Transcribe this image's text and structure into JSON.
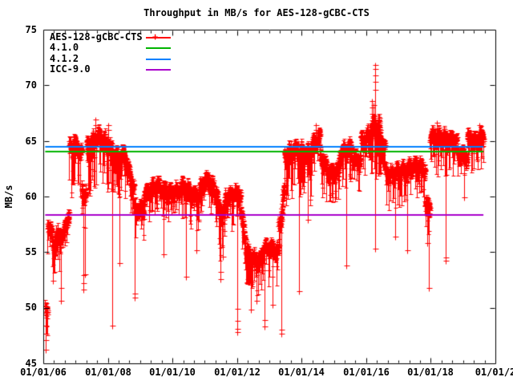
{
  "chart_data": {
    "type": "scatter",
    "title": "Throughput in MB/s for AES-128-gCBC-CTS",
    "grid": false,
    "legend_position": "top-left-inside",
    "x_axis": {
      "tick_labels": [
        "01/01/06",
        "01/01/08",
        "01/01/10",
        "01/01/12",
        "01/01/14",
        "01/01/16",
        "01/01/18",
        "01/01/2"
      ],
      "range_years": [
        2006,
        2020
      ],
      "minor_ticks_per_major_interval": 5
    },
    "y_axis": {
      "label": "MB/s",
      "min": 45,
      "max": 75,
      "tick_labels_top_to_bottom": [
        "75",
        "70",
        "65",
        "60",
        "55",
        "50",
        "45"
      ]
    },
    "series_name": "AES-128-gCBC-CTS",
    "series_color": "#ff0000",
    "legend": [
      {
        "label": "AES-128-gCBC-CTS",
        "color": "#ff0000",
        "marker_glyph": "+"
      },
      {
        "label": "4.1.0",
        "color": "#00b400",
        "marker_glyph": ""
      },
      {
        "label": "4.1.2",
        "color": "#0080ff",
        "marker_glyph": ""
      },
      {
        "label": "ICC-9.0",
        "color": "#aa00cc",
        "marker_glyph": ""
      }
    ],
    "ref_lines": [
      {
        "label": "4.1.0",
        "value": 64.05,
        "color": "#00b400"
      },
      {
        "label": "4.1.2",
        "value": 64.45,
        "color": "#0080ff"
      },
      {
        "label": "ICC-9.0",
        "value": 58.35,
        "color": "#aa00cc"
      }
    ],
    "data_extent_years": [
      0.06,
      13.63
    ],
    "sample_interval_years": 0.0047,
    "scatter_segments": [
      {
        "t0": 0.06,
        "t1": 0.13,
        "v0": 49.9,
        "v1": 49.7,
        "band": 0.6,
        "tail_prob": 0.3,
        "tail_max": 2.4
      },
      {
        "t0": 0.13,
        "t1": 0.32,
        "v0": 57.7,
        "v1": 55.9,
        "band": 1.0,
        "tail_prob": 0.12,
        "tail_max": 2.2
      },
      {
        "t0": 0.32,
        "t1": 0.5,
        "v0": 55.9,
        "v1": 57.2,
        "band": 1.0,
        "tail_prob": 0.12,
        "tail_max": 2.2
      },
      {
        "t0": 0.5,
        "t1": 0.64,
        "v0": 56.3,
        "v1": 56.6,
        "band": 0.9,
        "tail_prob": 0.12,
        "tail_max": 2.2
      },
      {
        "t0": 0.64,
        "t1": 0.8,
        "v0": 57.4,
        "v1": 58.0,
        "band": 0.7,
        "tail_prob": 0.1,
        "tail_max": 1.8
      },
      {
        "t0": 0.8,
        "t1": 1.02,
        "v0": 64.2,
        "v1": 64.5,
        "band": 1.1,
        "tail_prob": 0.22,
        "tail_max": 3.8
      },
      {
        "t0": 1.02,
        "t1": 1.18,
        "v0": 64.6,
        "v1": 64.0,
        "band": 0.9,
        "tail_prob": 0.18,
        "tail_max": 3.2
      },
      {
        "t0": 1.18,
        "t1": 1.33,
        "v0": 60.8,
        "v1": 60.4,
        "band": 1.0,
        "tail_prob": 0.15,
        "tail_max": 2.6
      },
      {
        "t0": 1.33,
        "t1": 1.6,
        "v0": 64.6,
        "v1": 65.1,
        "band": 1.0,
        "tail_prob": 0.2,
        "tail_max": 3.6
      },
      {
        "t0": 1.6,
        "t1": 2.1,
        "v0": 65.2,
        "v1": 64.6,
        "band": 0.95,
        "tail_prob": 0.2,
        "tail_max": 3.6
      },
      {
        "t0": 2.1,
        "t1": 2.52,
        "v0": 63.9,
        "v1": 63.5,
        "band": 0.85,
        "tail_prob": 0.15,
        "tail_max": 3.0
      },
      {
        "t0": 2.52,
        "t1": 2.8,
        "v0": 63.0,
        "v1": 60.6,
        "band": 1.1,
        "tail_prob": 0.15,
        "tail_max": 2.8
      },
      {
        "t0": 2.8,
        "t1": 3.1,
        "v0": 58.9,
        "v1": 59.3,
        "band": 0.9,
        "tail_prob": 0.1,
        "tail_max": 2.2
      },
      {
        "t0": 3.1,
        "t1": 3.65,
        "v0": 60.3,
        "v1": 60.8,
        "band": 0.9,
        "tail_prob": 0.12,
        "tail_max": 2.4
      },
      {
        "t0": 3.65,
        "t1": 4.25,
        "v0": 60.8,
        "v1": 60.4,
        "band": 0.9,
        "tail_prob": 0.12,
        "tail_max": 2.6
      },
      {
        "t0": 4.25,
        "t1": 4.85,
        "v0": 60.5,
        "v1": 60.4,
        "band": 1.0,
        "tail_prob": 0.12,
        "tail_max": 2.6
      },
      {
        "t0": 4.85,
        "t1": 5.12,
        "v0": 60.9,
        "v1": 61.4,
        "band": 0.9,
        "tail_prob": 0.1,
        "tail_max": 2.2
      },
      {
        "t0": 5.12,
        "t1": 5.38,
        "v0": 61.0,
        "v1": 60.2,
        "band": 0.9,
        "tail_prob": 0.1,
        "tail_max": 2.2
      },
      {
        "t0": 5.38,
        "t1": 5.62,
        "v0": 59.1,
        "v1": 58.8,
        "band": 1.1,
        "tail_prob": 0.2,
        "tail_max": 3.4
      },
      {
        "t0": 5.62,
        "t1": 6.1,
        "v0": 60.2,
        "v1": 59.9,
        "band": 0.9,
        "tail_prob": 0.1,
        "tail_max": 2.2
      },
      {
        "t0": 6.1,
        "t1": 6.26,
        "v0": 58.2,
        "v1": 56.3,
        "band": 1.1,
        "tail_prob": 0.1,
        "tail_max": 2.2
      },
      {
        "t0": 6.26,
        "t1": 6.58,
        "v0": 55.2,
        "v1": 54.5,
        "band": 0.9,
        "tail_prob": 0.15,
        "tail_max": 2.8
      },
      {
        "t0": 6.58,
        "t1": 6.78,
        "v0": 54.1,
        "v1": 54.4,
        "band": 0.7,
        "tail_prob": 0.12,
        "tail_max": 2.4
      },
      {
        "t0": 6.78,
        "t1": 7.28,
        "v0": 55.1,
        "v1": 55.4,
        "band": 0.8,
        "tail_prob": 0.12,
        "tail_max": 2.8
      },
      {
        "t0": 7.28,
        "t1": 7.46,
        "v0": 58.0,
        "v1": 60.5,
        "band": 1.5,
        "tail_prob": 0.15,
        "tail_max": 2.6
      },
      {
        "t0": 7.46,
        "t1": 7.85,
        "v0": 63.7,
        "v1": 64.1,
        "band": 1.0,
        "tail_prob": 0.2,
        "tail_max": 3.6
      },
      {
        "t0": 7.85,
        "t1": 8.32,
        "v0": 64.0,
        "v1": 64.3,
        "band": 1.0,
        "tail_prob": 0.2,
        "tail_max": 3.6
      },
      {
        "t0": 8.32,
        "t1": 8.56,
        "v0": 64.8,
        "v1": 65.2,
        "band": 0.9,
        "tail_prob": 0.15,
        "tail_max": 2.8
      },
      {
        "t0": 8.56,
        "t1": 8.78,
        "v0": 63.4,
        "v1": 62.3,
        "band": 1.0,
        "tail_prob": 0.12,
        "tail_max": 2.4
      },
      {
        "t0": 8.78,
        "t1": 9.16,
        "v0": 62.3,
        "v1": 62.6,
        "band": 0.9,
        "tail_prob": 0.12,
        "tail_max": 2.6
      },
      {
        "t0": 9.16,
        "t1": 9.56,
        "v0": 63.9,
        "v1": 64.2,
        "band": 0.8,
        "tail_prob": 0.15,
        "tail_max": 3.0
      },
      {
        "t0": 9.56,
        "t1": 9.82,
        "v0": 63.2,
        "v1": 63.5,
        "band": 0.9,
        "tail_prob": 0.12,
        "tail_max": 2.4
      },
      {
        "t0": 9.82,
        "t1": 10.16,
        "v0": 65.2,
        "v1": 65.8,
        "band": 1.0,
        "tail_prob": 0.18,
        "tail_max": 3.4
      },
      {
        "t0": 10.16,
        "t1": 10.42,
        "v0": 66.1,
        "v1": 65.7,
        "band": 1.2,
        "tail_prob": 0.18,
        "tail_max": 3.6
      },
      {
        "t0": 10.42,
        "t1": 10.58,
        "v0": 64.9,
        "v1": 64.5,
        "band": 0.9,
        "tail_prob": 0.12,
        "tail_max": 2.6
      },
      {
        "t0": 10.58,
        "t1": 10.84,
        "v0": 62.5,
        "v1": 62.2,
        "band": 0.9,
        "tail_prob": 0.12,
        "tail_max": 2.4
      },
      {
        "t0": 10.84,
        "t1": 11.28,
        "v0": 62.3,
        "v1": 62.0,
        "band": 0.9,
        "tail_prob": 0.15,
        "tail_max": 2.8
      },
      {
        "t0": 11.28,
        "t1": 11.58,
        "v0": 62.5,
        "v1": 63.2,
        "band": 0.8,
        "tail_prob": 0.12,
        "tail_max": 2.4
      },
      {
        "t0": 11.58,
        "t1": 11.82,
        "v0": 63.1,
        "v1": 62.6,
        "band": 0.9,
        "tail_prob": 0.12,
        "tail_max": 2.4
      },
      {
        "t0": 11.82,
        "t1": 11.97,
        "v0": 59.3,
        "v1": 59.0,
        "band": 0.7,
        "tail_prob": 0.15,
        "tail_max": 2.4
      },
      {
        "t0": 11.97,
        "t1": 12.52,
        "v0": 65.2,
        "v1": 65.5,
        "band": 0.9,
        "tail_prob": 0.15,
        "tail_max": 3.0
      },
      {
        "t0": 12.52,
        "t1": 12.8,
        "v0": 65.5,
        "v1": 64.8,
        "band": 0.8,
        "tail_prob": 0.12,
        "tail_max": 2.4
      },
      {
        "t0": 12.8,
        "t1": 13.12,
        "v0": 63.7,
        "v1": 63.4,
        "band": 0.8,
        "tail_prob": 0.12,
        "tail_max": 2.4
      },
      {
        "t0": 13.12,
        "t1": 13.63,
        "v0": 65.3,
        "v1": 65.4,
        "band": 0.8,
        "tail_prob": 0.12,
        "tail_max": 2.4
      }
    ],
    "down_spikes": [
      {
        "t": 0.085,
        "from": 49.8,
        "to": 46.2,
        "marks": [
          46.2,
          47.1,
          47.7,
          48.4
        ]
      },
      {
        "t": 0.3,
        "from": 55.6,
        "to": 52.4,
        "marks": [
          52.4
        ]
      },
      {
        "t": 0.55,
        "from": 55.8,
        "to": 50.6,
        "marks": [
          50.6,
          51.8
        ]
      },
      {
        "t": 1.25,
        "from": 58.2,
        "to": 51.6,
        "marks": [
          51.6,
          52.2,
          52.9
        ]
      },
      {
        "t": 1.3,
        "from": 57.5,
        "to": 53.0,
        "marks": [
          53.0
        ]
      },
      {
        "t": 2.13,
        "from": 63.0,
        "to": 48.4,
        "marks": [
          48.4
        ]
      },
      {
        "t": 2.35,
        "from": 62.5,
        "to": 54.0,
        "marks": [
          54.0
        ]
      },
      {
        "t": 2.82,
        "from": 59.2,
        "to": 50.9,
        "marks": [
          50.9,
          51.3
        ]
      },
      {
        "t": 3.72,
        "from": 59.8,
        "to": 54.8,
        "marks": [
          54.8
        ]
      },
      {
        "t": 4.42,
        "from": 59.9,
        "to": 52.8,
        "marks": [
          52.8
        ]
      },
      {
        "t": 4.75,
        "from": 59.8,
        "to": 55.2,
        "marks": [
          55.2
        ]
      },
      {
        "t": 5.48,
        "from": 57.8,
        "to": 52.6,
        "marks": [
          52.6,
          53.2
        ]
      },
      {
        "t": 5.56,
        "from": 57.5,
        "to": 54.6,
        "marks": [
          54.6
        ]
      },
      {
        "t": 6.0,
        "from": 59.8,
        "to": 47.8,
        "marks": [
          47.8,
          48.1,
          48.8,
          49.9
        ]
      },
      {
        "t": 6.42,
        "from": 54.6,
        "to": 49.8,
        "marks": [
          49.8
        ]
      },
      {
        "t": 6.6,
        "from": 54.3,
        "to": 50.6,
        "marks": [
          50.6
        ]
      },
      {
        "t": 6.84,
        "from": 54.5,
        "to": 48.3,
        "marks": [
          48.3,
          48.9
        ]
      },
      {
        "t": 7.1,
        "from": 55.0,
        "to": 50.3,
        "marks": [
          50.3
        ]
      },
      {
        "t": 7.36,
        "from": 57.8,
        "to": 47.7,
        "marks": [
          47.7,
          48.0
        ]
      },
      {
        "t": 7.93,
        "from": 63.5,
        "to": 51.5,
        "marks": [
          51.5
        ]
      },
      {
        "t": 8.2,
        "from": 63.6,
        "to": 57.9,
        "marks": [
          57.9
        ]
      },
      {
        "t": 9.38,
        "from": 63.8,
        "to": 53.8,
        "marks": [
          53.8
        ]
      },
      {
        "t": 10.27,
        "from": 65.0,
        "to": 55.3,
        "marks": [
          55.3
        ]
      },
      {
        "t": 10.9,
        "from": 61.8,
        "to": 56.4,
        "marks": [
          56.4
        ]
      },
      {
        "t": 11.27,
        "from": 62.0,
        "to": 55.2,
        "marks": [
          55.2
        ]
      },
      {
        "t": 11.9,
        "from": 58.9,
        "to": 55.8,
        "marks": [
          55.8
        ]
      },
      {
        "t": 11.93,
        "from": 58.8,
        "to": 51.8,
        "marks": [
          51.8
        ]
      },
      {
        "t": 12.46,
        "from": 64.8,
        "to": 54.2,
        "marks": [
          54.2,
          54.5
        ]
      },
      {
        "t": 13.02,
        "from": 63.2,
        "to": 59.9,
        "marks": [
          59.9
        ]
      }
    ],
    "up_spikes": [
      {
        "t": 1.62,
        "from": 65.2,
        "to": 66.9,
        "marks": [
          66.4,
          66.9
        ]
      },
      {
        "t": 2.02,
        "from": 64.8,
        "to": 66.4,
        "marks": [
          66.0,
          66.4
        ]
      },
      {
        "t": 8.45,
        "from": 65.0,
        "to": 66.4,
        "marks": [
          66.0,
          66.4
        ]
      },
      {
        "t": 10.17,
        "from": 65.3,
        "to": 68.6,
        "marks": [
          67.4,
          68.0,
          68.6
        ]
      },
      {
        "t": 10.22,
        "from": 65.5,
        "to": 68.2,
        "marks": [
          67.2,
          68.2
        ]
      },
      {
        "t": 10.27,
        "from": 66.0,
        "to": 71.8,
        "marks": [
          69.6,
          70.3,
          70.9,
          71.5,
          71.8
        ]
      },
      {
        "t": 12.18,
        "from": 65.8,
        "to": 66.6,
        "marks": [
          66.6
        ]
      },
      {
        "t": 13.5,
        "from": 65.6,
        "to": 66.4,
        "marks": [
          66.4
        ]
      }
    ]
  }
}
